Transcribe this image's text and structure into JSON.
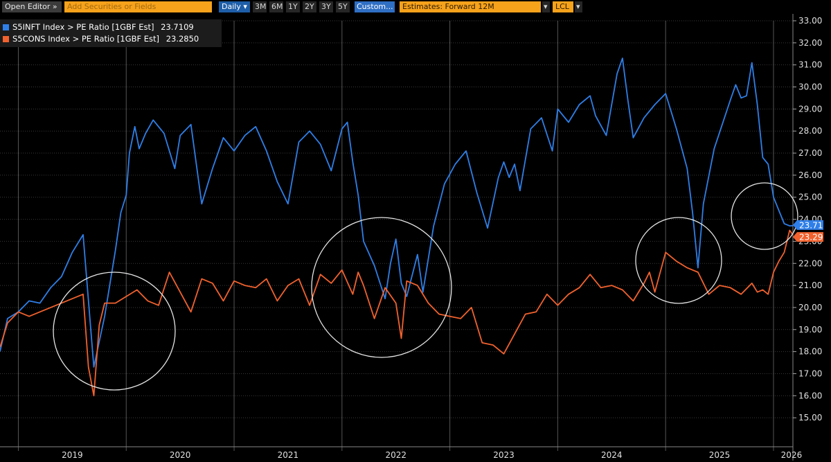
{
  "toolbar": {
    "open_editor": "Open Editor »",
    "search_placeholder": "Add Securities or Fields",
    "frequency": "Daily",
    "ranges": [
      "3M",
      "6M",
      "1Y",
      "2Y",
      "3Y",
      "5Y"
    ],
    "custom": "Custom...",
    "estimates": "Estimates: Forward 12M",
    "currency": "LCL",
    "colors": {
      "orange": "#f7a21b",
      "blue": "#2f6fc4"
    }
  },
  "chart_data": {
    "type": "line",
    "title": "",
    "xlabel": "",
    "ylabel": "",
    "ylim": [
      14.0,
      33.0
    ],
    "yticks": [
      15.0,
      16.0,
      17.0,
      18.0,
      19.0,
      20.0,
      21.0,
      22.0,
      23.0,
      24.0,
      25.0,
      26.0,
      27.0,
      28.0,
      29.0,
      30.0,
      31.0,
      32.0,
      33.0
    ],
    "ytick_labels": [
      "15.00",
      "16.00",
      "17.00",
      "18.00",
      "19.00",
      "20.00",
      "21.00",
      "22.00",
      "23.00",
      "24.00",
      "25.00",
      "26.00",
      "27.00",
      "28.00",
      "29.00",
      "30.00",
      "31.00",
      "32.00",
      "33.00"
    ],
    "xlim": [
      2018.83,
      2026.18
    ],
    "year_boundaries": [
      2019,
      2020,
      2021,
      2022,
      2023,
      2024,
      2025,
      2026
    ],
    "xtick_labels": [
      "2019",
      "2020",
      "2021",
      "2022",
      "2023",
      "2024",
      "2025",
      "2026"
    ],
    "grid": true,
    "legend_position": "top-left",
    "series": [
      {
        "name": "S5INFT Index > PE Ratio [1GBF Est]",
        "last_value_text": "23.7109",
        "last_label": "23.71",
        "color": "#2f7fe8",
        "x": [
          2018.83,
          2018.9,
          2019.0,
          2019.1,
          2019.2,
          2019.3,
          2019.4,
          2019.5,
          2019.6,
          2019.7,
          2019.8,
          2019.9,
          2019.95,
          2020.0,
          2020.03,
          2020.08,
          2020.12,
          2020.18,
          2020.25,
          2020.35,
          2020.45,
          2020.5,
          2020.6,
          2020.7,
          2020.8,
          2020.9,
          2021.0,
          2021.1,
          2021.2,
          2021.3,
          2021.4,
          2021.5,
          2021.6,
          2021.7,
          2021.8,
          2021.9,
          2022.0,
          2022.05,
          2022.1,
          2022.15,
          2022.2,
          2022.3,
          2022.4,
          2022.45,
          2022.5,
          2022.55,
          2022.6,
          2022.7,
          2022.75,
          2022.85,
          2022.95,
          2023.05,
          2023.15,
          2023.25,
          2023.35,
          2023.45,
          2023.5,
          2023.55,
          2023.6,
          2023.65,
          2023.75,
          2023.85,
          2023.95,
          2024.0,
          2024.1,
          2024.2,
          2024.3,
          2024.35,
          2024.45,
          2024.55,
          2024.6,
          2024.65,
          2024.7,
          2024.8,
          2024.9,
          2025.0,
          2025.1,
          2025.2,
          2025.25,
          2025.3,
          2025.35,
          2025.45,
          2025.6,
          2025.65,
          2025.7,
          2025.75,
          2025.8,
          2025.85,
          2025.9,
          2025.95,
          2026.0,
          2026.05,
          2026.1,
          2026.15,
          2026.18
        ],
        "y": [
          18.0,
          19.5,
          19.8,
          20.3,
          20.2,
          20.9,
          21.4,
          22.5,
          23.3,
          17.3,
          19.6,
          22.6,
          24.3,
          25.1,
          27.0,
          28.2,
          27.2,
          27.9,
          28.5,
          27.9,
          26.3,
          27.8,
          28.3,
          24.7,
          26.3,
          27.7,
          27.1,
          27.8,
          28.2,
          27.1,
          25.7,
          24.7,
          27.5,
          28.0,
          27.4,
          26.2,
          28.1,
          28.4,
          26.6,
          25.1,
          23.0,
          21.9,
          20.4,
          22.0,
          23.1,
          21.1,
          20.5,
          22.4,
          20.7,
          23.7,
          25.6,
          26.5,
          27.1,
          25.2,
          23.6,
          25.9,
          26.6,
          25.9,
          26.5,
          25.3,
          28.1,
          28.6,
          27.1,
          29.0,
          28.4,
          29.2,
          29.6,
          28.7,
          27.8,
          30.6,
          31.3,
          29.4,
          27.7,
          28.6,
          29.2,
          29.7,
          28.1,
          26.3,
          24.3,
          21.8,
          24.7,
          27.2,
          29.4,
          30.1,
          29.5,
          29.6,
          31.1,
          29.2,
          26.8,
          26.5,
          25.0,
          24.4,
          23.8,
          23.7,
          23.71
        ]
      },
      {
        "name": "S5CONS Index > PE Ratio [1GBF Est]",
        "last_value_text": "23.2850",
        "last_label": "23.29",
        "color": "#f2622e",
        "x": [
          2018.83,
          2018.9,
          2019.0,
          2019.1,
          2019.2,
          2019.3,
          2019.4,
          2019.5,
          2019.6,
          2019.65,
          2019.7,
          2019.75,
          2019.8,
          2019.9,
          2020.0,
          2020.1,
          2020.2,
          2020.3,
          2020.4,
          2020.5,
          2020.6,
          2020.7,
          2020.8,
          2020.9,
          2021.0,
          2021.1,
          2021.2,
          2021.3,
          2021.4,
          2021.5,
          2021.6,
          2021.7,
          2021.8,
          2021.9,
          2022.0,
          2022.1,
          2022.15,
          2022.2,
          2022.3,
          2022.4,
          2022.5,
          2022.55,
          2022.6,
          2022.7,
          2022.8,
          2022.9,
          2023.0,
          2023.1,
          2023.2,
          2023.3,
          2023.4,
          2023.5,
          2023.6,
          2023.7,
          2023.8,
          2023.9,
          2024.0,
          2024.1,
          2024.2,
          2024.3,
          2024.4,
          2024.5,
          2024.6,
          2024.7,
          2024.8,
          2024.85,
          2024.9,
          2025.0,
          2025.1,
          2025.2,
          2025.3,
          2025.4,
          2025.5,
          2025.6,
          2025.7,
          2025.8,
          2025.85,
          2025.9,
          2025.95,
          2026.0,
          2026.05,
          2026.1,
          2026.15,
          2026.18
        ],
        "y": [
          18.2,
          19.3,
          19.8,
          19.6,
          19.8,
          20.0,
          20.2,
          20.4,
          20.6,
          17.3,
          16.0,
          19.2,
          20.2,
          20.2,
          20.5,
          20.8,
          20.3,
          20.1,
          21.6,
          20.7,
          19.8,
          21.3,
          21.1,
          20.3,
          21.2,
          21.0,
          20.9,
          21.3,
          20.3,
          21.0,
          21.3,
          20.1,
          21.5,
          21.1,
          21.7,
          20.6,
          21.6,
          21.0,
          19.5,
          20.9,
          20.2,
          18.6,
          21.2,
          21.0,
          20.2,
          19.7,
          19.6,
          19.5,
          20.0,
          18.4,
          18.3,
          17.9,
          18.8,
          19.7,
          19.8,
          20.6,
          20.1,
          20.6,
          20.9,
          21.5,
          20.9,
          21.0,
          20.8,
          20.3,
          21.1,
          21.6,
          20.7,
          22.5,
          22.1,
          21.8,
          21.6,
          20.6,
          21.0,
          20.9,
          20.6,
          21.1,
          20.7,
          20.8,
          20.6,
          21.6,
          22.1,
          22.5,
          23.5,
          23.29
        ]
      }
    ],
    "annotations": [
      "circle around 2020 drop",
      "circle around 2022",
      "circle around 2025 drop",
      "circle around latest values"
    ]
  }
}
